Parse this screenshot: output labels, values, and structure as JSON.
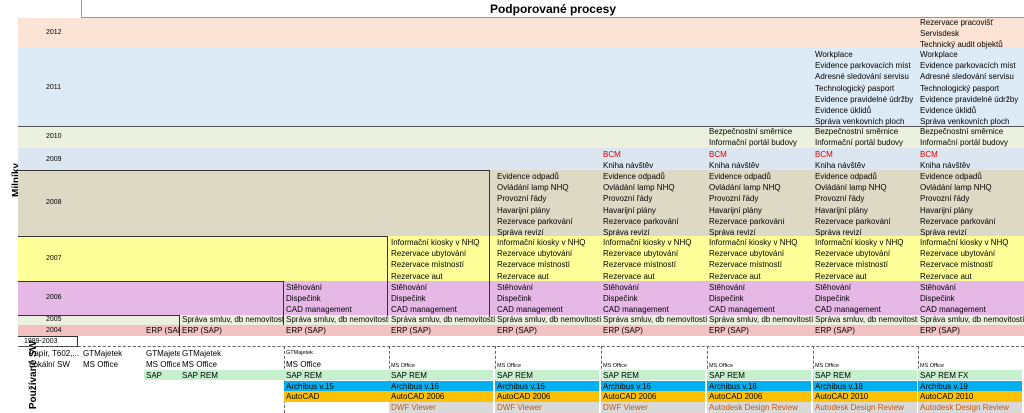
{
  "title": "Podporované procesy",
  "left_labels": {
    "milestones": "Milníky",
    "software": "Používané SW"
  },
  "years": [
    "2012",
    "2011",
    "2010",
    "2009",
    "2008",
    "2007",
    "2006",
    "2005",
    "2004",
    "1989-2003"
  ],
  "colors": {
    "y2012": "#fbe4d5",
    "y2011": "#ddebf7",
    "y2010": "#ebf1de",
    "y2009": "#dce6f1",
    "y2008": "#ddd9c4",
    "y2007": "#ffff99",
    "y2006": "#e6b8e6",
    "y2005": "#ebf1de",
    "y2004": "#f2c2c2",
    "sap": "#c6efce",
    "archibus": "#00b0f0",
    "autocad": "#ffc000",
    "viewer": "#d9d9d9"
  },
  "col_2012": [
    "Rezervace pracovišť",
    "Servisdesk",
    "Technický audit objektů"
  ],
  "col_2011_a": [
    "Workplace",
    "Evidence parkovacích míst",
    "Adresné sledování servisu",
    "Technologický pasport",
    "Evidence pravidelné údržby",
    "Evidence úklidů",
    "Správa venkovních ploch"
  ],
  "col_2011_b": [
    "Workplace",
    "Evidence parkovacích míst",
    "Adresné sledování servisu",
    "Technologický pasport",
    "Evidence pravidelné údržby",
    "Evidence úklidů",
    "Správa venkovních ploch"
  ],
  "col_2010": [
    "Bezpečnostní směrnice",
    "Informační portál budovy"
  ],
  "col_2009": [
    "BCM",
    "Kniha návštěv"
  ],
  "col_2008": [
    "Evidence odpadů",
    "Ovládání lamp NHQ",
    "Provozní řády",
    "Havarijní plány",
    "Rezervace parkování",
    "Správa revizí"
  ],
  "col_2007": [
    "Informační kiosky v NHQ",
    "Rezervace ubytování",
    "Rezervace místností",
    "Rezervace aut"
  ],
  "col_2006": [
    "Stěhování",
    "Dispečink",
    "CAD management"
  ],
  "col_2005": "Správa smluv, db nemovitostí",
  "col_2004": "ERP (SAP)",
  "sw": {
    "legacy_1": "Papír, T602,...",
    "legacy_2": "Lokální SW",
    "gtm": "GTMajetek",
    "gtm_cut": "GTMajete",
    "mso": "MS Office",
    "mso_cut": "MS Office",
    "sap": "SAP",
    "sap_rem": "SAP REM",
    "sap_rem_fx": "SAP REM FX",
    "arch15": "Archibus v.15",
    "arch16": "Archibus v.16",
    "arch18": "Archibus v.18",
    "arch19": "Archibus v.19",
    "acad": "AutoCAD",
    "acad2006": "AutoCAD 2006",
    "acad2010": "AutoCAD 2010",
    "dwf": "DWF Viewer",
    "adr": "Autodesk Design Review"
  }
}
